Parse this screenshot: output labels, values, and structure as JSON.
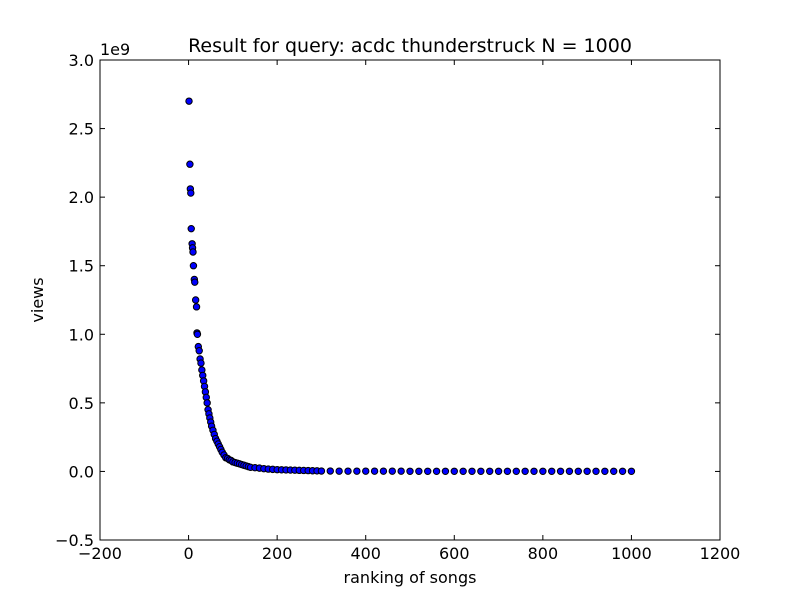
{
  "chart_data": {
    "type": "scatter",
    "title": "Result for query: acdc thunderstruck N = 1000",
    "xlabel": "ranking of songs",
    "ylabel": "views",
    "y_scale_label": "1e9",
    "xlim": [
      -200,
      1200
    ],
    "ylim": [
      -0.5,
      3.0
    ],
    "x_ticks": [
      -200,
      0,
      200,
      400,
      600,
      800,
      1000,
      1200
    ],
    "y_ticks": [
      -0.5,
      0.0,
      0.5,
      1.0,
      1.5,
      2.0,
      2.5,
      3.0
    ],
    "x_tick_labels": [
      "−200",
      "0",
      "200",
      "400",
      "600",
      "800",
      "1000",
      "1200"
    ],
    "y_tick_labels": [
      "−0.5",
      "0.0",
      "0.5",
      "1.0",
      "1.5",
      "2.0",
      "2.5",
      "3.0"
    ],
    "grid": false,
    "marker_color": "#0000ff",
    "marker_edge_color": "#000000",
    "y_unit": "1e9 views",
    "series": [
      {
        "x": [
          1,
          3,
          4,
          5,
          6,
          8,
          9,
          10,
          11,
          13,
          14,
          16,
          18,
          19,
          20,
          22,
          24,
          26,
          28,
          30,
          32,
          34,
          36,
          38,
          40,
          42,
          44,
          46,
          48,
          50,
          52,
          55,
          58,
          61,
          64,
          67,
          70,
          73,
          76,
          80,
          84,
          88,
          92,
          96,
          100,
          105,
          110,
          115,
          120,
          125,
          130,
          135,
          140,
          150,
          160,
          170,
          180,
          190,
          200,
          210,
          220,
          230,
          240,
          250,
          260,
          270,
          280,
          290,
          300,
          320,
          340,
          360,
          380,
          400,
          420,
          440,
          460,
          480,
          500,
          520,
          540,
          560,
          580,
          600,
          620,
          640,
          660,
          680,
          700,
          720,
          740,
          760,
          780,
          800,
          820,
          840,
          860,
          880,
          900,
          920,
          940,
          960,
          980,
          1000
        ],
        "y": [
          2.7,
          2.24,
          2.06,
          2.03,
          1.77,
          1.66,
          1.63,
          1.6,
          1.5,
          1.4,
          1.38,
          1.25,
          1.2,
          1.01,
          1.0,
          0.91,
          0.88,
          0.82,
          0.79,
          0.74,
          0.7,
          0.66,
          0.62,
          0.58,
          0.54,
          0.5,
          0.45,
          0.42,
          0.39,
          0.36,
          0.33,
          0.3,
          0.27,
          0.24,
          0.22,
          0.2,
          0.18,
          0.16,
          0.14,
          0.12,
          0.1,
          0.095,
          0.085,
          0.08,
          0.07,
          0.065,
          0.06,
          0.055,
          0.05,
          0.045,
          0.04,
          0.035,
          0.03,
          0.027,
          0.024,
          0.02,
          0.017,
          0.015,
          0.013,
          0.012,
          0.011,
          0.01,
          0.009,
          0.008,
          0.007,
          0.006,
          0.005,
          0.004,
          0.003,
          0.003,
          0.002,
          0.002,
          0.002,
          0.002,
          0.002,
          0.002,
          0.002,
          0.002,
          0.001,
          0.001,
          0.001,
          0.001,
          0.001,
          0.001,
          0.001,
          0.001,
          0.001,
          0.001,
          0.001,
          0.001,
          0.001,
          0.001,
          0.001,
          0.001,
          0.001,
          0.001,
          0.001,
          0.001,
          0.001,
          0.001,
          0.001,
          0.001,
          0.001,
          0.001
        ]
      }
    ]
  }
}
